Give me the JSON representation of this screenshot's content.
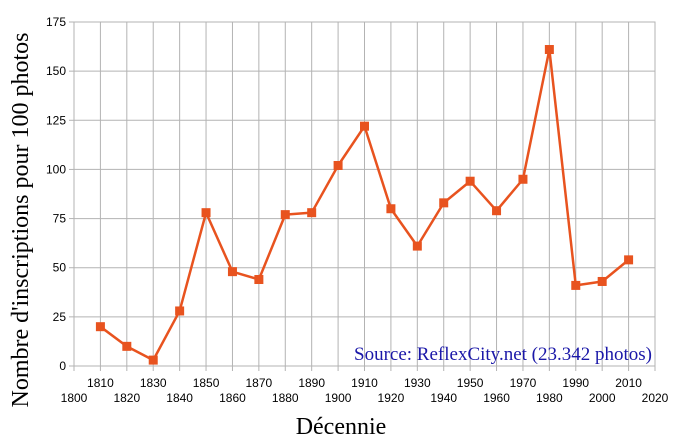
{
  "chart_data": {
    "type": "line",
    "title": "",
    "xlabel": "Décennie",
    "ylabel": "Nombre d'inscriptions pour 100 photos",
    "xlim": [
      1800,
      2020
    ],
    "ylim": [
      0,
      175
    ],
    "x_ticks_lower": [
      "1800",
      "1820",
      "1840",
      "1860",
      "1880",
      "1900",
      "1920",
      "1940",
      "1960",
      "1980",
      "2000",
      "2020"
    ],
    "x_ticks_upper": [
      "1810",
      "1830",
      "1850",
      "1870",
      "1890",
      "1910",
      "1930",
      "1950",
      "1970",
      "1990",
      "2010"
    ],
    "y_ticks": [
      "0",
      "25",
      "50",
      "75",
      "100",
      "125",
      "150",
      "175"
    ],
    "grid": true,
    "legend": "none",
    "annotation": "Source: ReflexCity.net (23.342 photos)",
    "series": [
      {
        "color": "#e8531f",
        "marker": "square",
        "x": [
          1810,
          1820,
          1830,
          1840,
          1850,
          1860,
          1870,
          1880,
          1890,
          1900,
          1910,
          1920,
          1930,
          1940,
          1950,
          1960,
          1970,
          1980,
          1990,
          2000,
          2010
        ],
        "values": [
          20,
          10,
          3,
          28,
          78,
          48,
          44,
          77,
          78,
          102,
          122,
          80,
          61,
          83,
          94,
          79,
          95,
          161,
          41,
          43,
          54
        ]
      }
    ]
  },
  "colors": {
    "series": "#e8531f",
    "source_text": "#1a17a8",
    "grid": "#b3b3b3",
    "frame": "#b3b3b3"
  }
}
